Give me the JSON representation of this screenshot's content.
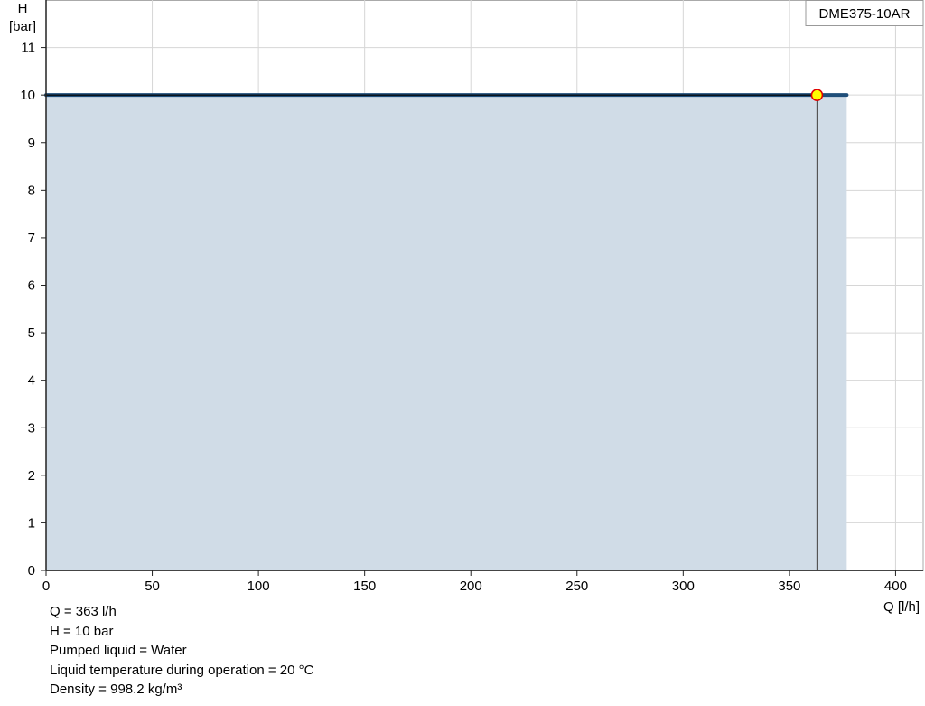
{
  "chart_data": {
    "type": "area",
    "legend": "DME375-10AR",
    "legend_placement": "top-right",
    "xlabel": "Q [l/h]",
    "ylabel_line1": "H",
    "ylabel_line2": "[bar]",
    "xlim": [
      0,
      413
    ],
    "ylim": [
      0,
      12
    ],
    "x_ticks": [
      0,
      50,
      100,
      150,
      200,
      250,
      300,
      350,
      400
    ],
    "y_ticks": [
      0,
      1,
      2,
      3,
      4,
      5,
      6,
      7,
      8,
      9,
      10,
      11
    ],
    "grid": true,
    "series": [
      {
        "x": [
          0,
          377
        ],
        "y": [
          10,
          10
        ]
      }
    ],
    "duty_point": {
      "x": 363,
      "y": 10
    },
    "colors": {
      "fill": "#d0dce7",
      "curve": "#1f4e79",
      "point_fill": "#ffff00",
      "point_stroke": "#e00000"
    }
  },
  "info": [
    "Q = 363 l/h",
    "H = 10 bar",
    "Pumped liquid = Water",
    "Liquid temperature during operation = 20 °C",
    "Density = 998.2 kg/m³"
  ]
}
